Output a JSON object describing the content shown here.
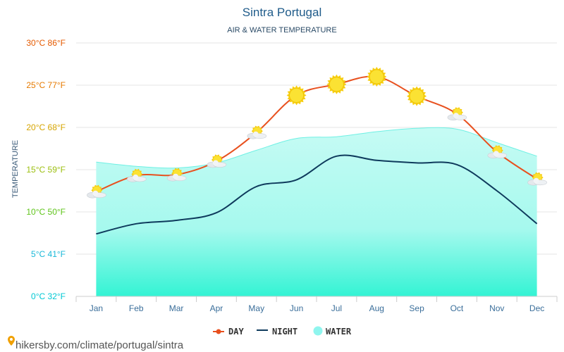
{
  "chart_data": {
    "type": "area",
    "title": "Sintra Portugal",
    "subtitle": "AIR & WATER TEMPERATURE",
    "ylabel": "TEMPERATURE",
    "ylim": [
      0,
      30
    ],
    "categories": [
      "Jan",
      "Feb",
      "Mar",
      "Apr",
      "May",
      "Jun",
      "Jul",
      "Aug",
      "Sep",
      "Oct",
      "Nov",
      "Dec"
    ],
    "y_ticks": [
      {
        "value": 0,
        "label": "0°C 32°F",
        "color": "#00c8d4"
      },
      {
        "value": 5,
        "label": "5°C 41°F",
        "color": "#1ab8d8"
      },
      {
        "value": 10,
        "label": "10°C 50°F",
        "color": "#5fc41a"
      },
      {
        "value": 15,
        "label": "15°C 59°F",
        "color": "#9cbf10"
      },
      {
        "value": 20,
        "label": "20°C 68°F",
        "color": "#d6a500"
      },
      {
        "value": 25,
        "label": "25°C 77°F",
        "color": "#e67a00"
      },
      {
        "value": 30,
        "label": "30°C 86°F",
        "color": "#e55a00"
      }
    ],
    "series": [
      {
        "name": "DAY",
        "color": "#e8501e",
        "values": [
          12.4,
          14.3,
          14.4,
          16.0,
          19.4,
          23.8,
          25.1,
          26.0,
          23.7,
          21.6,
          17.1,
          13.9
        ]
      },
      {
        "name": "NIGHT",
        "color": "#0e3a5c",
        "values": [
          7.4,
          8.6,
          9.0,
          9.9,
          13.0,
          13.8,
          16.6,
          16.1,
          15.8,
          15.6,
          12.5,
          8.6
        ]
      },
      {
        "name": "WATER",
        "color": "#8ff5ee",
        "values": [
          15.9,
          15.4,
          15.2,
          15.8,
          17.3,
          18.7,
          18.9,
          19.5,
          19.9,
          19.8,
          18.2,
          16.6
        ]
      }
    ],
    "weather_icons": [
      "partly-cloudy",
      "partly-cloudy",
      "partly-cloudy",
      "partly-cloudy",
      "partly-cloudy",
      "sunny",
      "sunny",
      "sunny",
      "sunny",
      "partly-cloudy",
      "partly-cloudy",
      "partly-cloudy"
    ]
  },
  "footer": {
    "text": "hikersby.com/climate/portugal/sintra"
  },
  "colors": {
    "title": "#1f5b8a",
    "water_top": "#a8fbf0",
    "water_bottom": "#3ff5d8",
    "grid": "#e6e6e6"
  }
}
